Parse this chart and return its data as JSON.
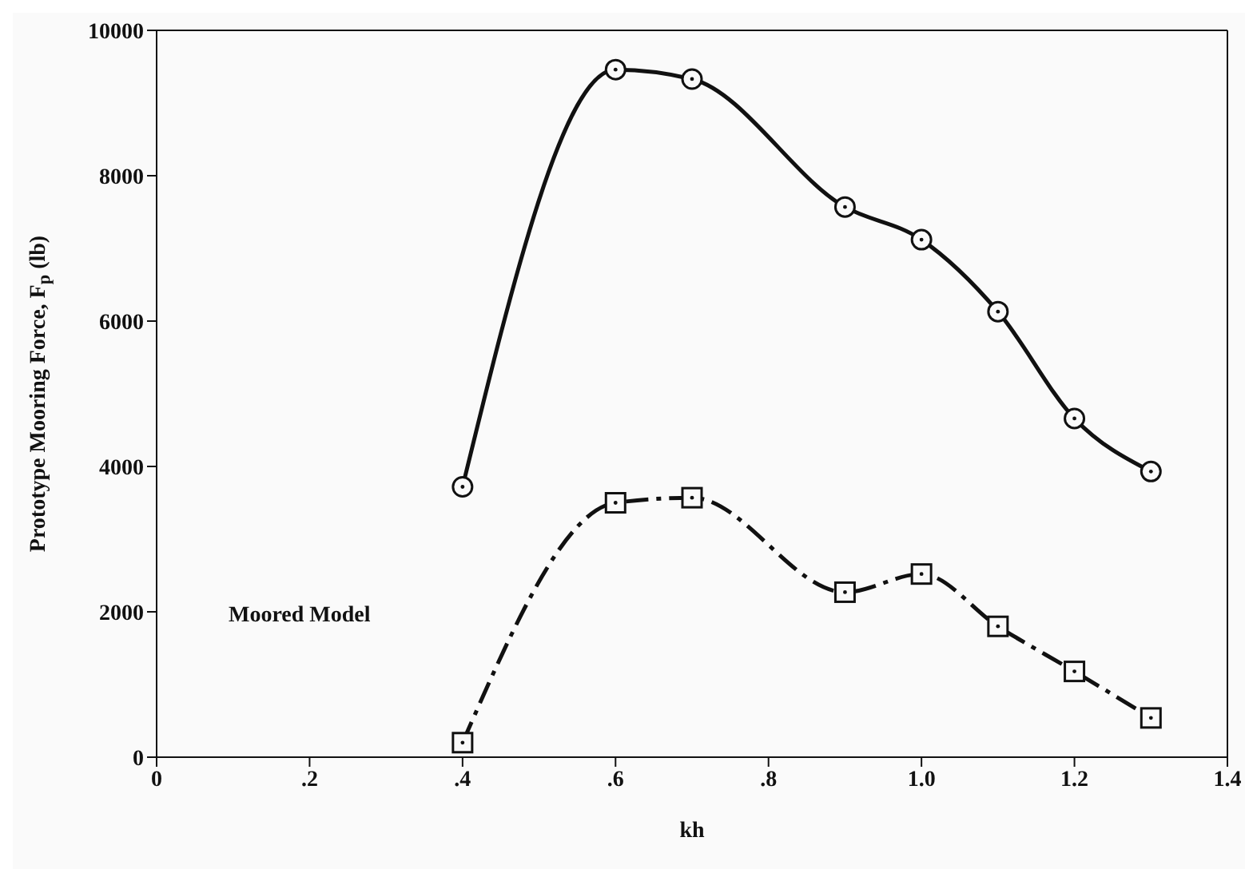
{
  "chart_data": {
    "type": "line",
    "xlabel": "kh",
    "ylabel": "Prototype Mooring Force, F$_{p}$ (lb)",
    "x": [
      0.4,
      0.6,
      0.7,
      0.9,
      1.0,
      1.1,
      1.2,
      1.3
    ],
    "series": [
      {
        "color": "#111111",
        "marker": "circle",
        "line_style": "solid",
        "values": [
          3720,
          9460,
          9330,
          7570,
          7120,
          6130,
          4660,
          3930
        ]
      },
      {
        "color": "#111111",
        "marker": "square",
        "line_style": "dashed",
        "values": [
          200,
          3500,
          3570,
          2270,
          2520,
          1800,
          1180,
          540
        ]
      }
    ],
    "xlim": [
      0,
      1.4
    ],
    "xticks": [
      0,
      {
        "value": 0.2,
        "label": ".2"
      },
      {
        "value": 0.4,
        "label": ".4"
      },
      {
        "value": 0.6,
        "label": ".6"
      },
      {
        "value": 0.8,
        "label": ".8"
      },
      {
        "value": 1.0,
        "label": "1.0"
      },
      {
        "value": 1.2,
        "label": "1.2"
      },
      {
        "value": 1.4,
        "label": "1.4"
      }
    ],
    "ylim": [
      0,
      10000
    ],
    "yticks": [
      0,
      2000,
      4000,
      6000,
      8000,
      10000
    ],
    "annotations": [
      "Moored Model"
    ]
  }
}
